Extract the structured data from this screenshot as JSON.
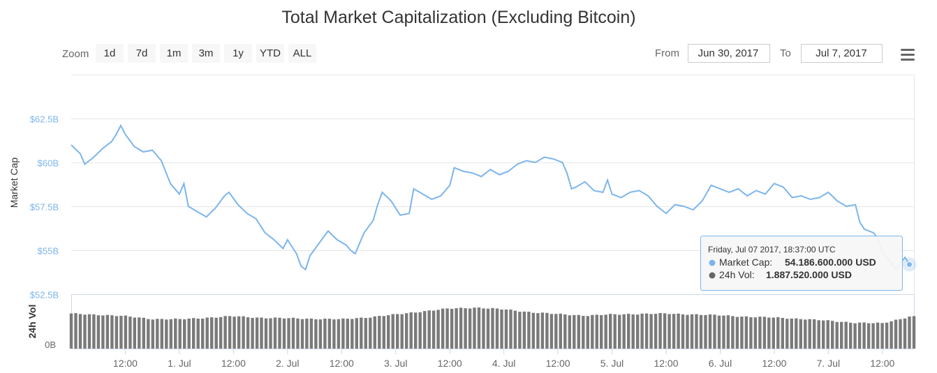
{
  "chart_data": {
    "type": "line",
    "title": "Total Market Capitalization (Excluding Bitcoin)",
    "controls": {
      "zoom_label": "Zoom",
      "zoom_buttons": [
        "1d",
        "7d",
        "1m",
        "3m",
        "1y",
        "YTD",
        "ALL"
      ],
      "from_label": "From",
      "from_value": "Jun 30, 2017",
      "to_label": "To",
      "to_value": "Jul 7, 2017",
      "menu_icon": "hamburger-icon"
    },
    "x_axis": {
      "type": "datetime",
      "range_hours": [
        0,
        187
      ],
      "tick_labels": [
        {
          "hour": 12,
          "label": "12:00"
        },
        {
          "hour": 24,
          "label": "1. Jul"
        },
        {
          "hour": 36,
          "label": "12:00"
        },
        {
          "hour": 48,
          "label": "2. Jul"
        },
        {
          "hour": 60,
          "label": "12:00"
        },
        {
          "hour": 72,
          "label": "3. Jul"
        },
        {
          "hour": 84,
          "label": "12:00"
        },
        {
          "hour": 96,
          "label": "4. Jul"
        },
        {
          "hour": 108,
          "label": "12:00"
        },
        {
          "hour": 120,
          "label": "5. Jul"
        },
        {
          "hour": 132,
          "label": "12:00"
        },
        {
          "hour": 144,
          "label": "6. Jul"
        },
        {
          "hour": 156,
          "label": "12:00"
        },
        {
          "hour": 168,
          "label": "7. Jul"
        },
        {
          "hour": 180,
          "label": "12:00"
        }
      ]
    },
    "y_axis_market_cap": {
      "label": "Market Cap",
      "range": [
        52.5,
        65
      ],
      "ticks": [
        {
          "value": 52.5,
          "label": "$52.5B"
        },
        {
          "value": 55,
          "label": "$55B"
        },
        {
          "value": 57.5,
          "label": "$57.5B"
        },
        {
          "value": 60,
          "label": "$60B"
        },
        {
          "value": 62.5,
          "label": "$62.5B"
        }
      ],
      "grid": true
    },
    "y_axis_volume": {
      "label": "24h Vol",
      "range": [
        0,
        3.2
      ],
      "ticks": [
        {
          "value": 0,
          "label": "0B"
        }
      ]
    },
    "series": [
      {
        "name": "Market Cap",
        "unit": "USD billions",
        "color": "#7cb5ec",
        "points": [
          {
            "hour": 0,
            "value": 61.0
          },
          {
            "hour": 2,
            "value": 60.5
          },
          {
            "hour": 3,
            "value": 59.9
          },
          {
            "hour": 5,
            "value": 60.3
          },
          {
            "hour": 7,
            "value": 60.8
          },
          {
            "hour": 9,
            "value": 61.2
          },
          {
            "hour": 10,
            "value": 61.6
          },
          {
            "hour": 11,
            "value": 62.1
          },
          {
            "hour": 12,
            "value": 61.6
          },
          {
            "hour": 14,
            "value": 60.9
          },
          {
            "hour": 16,
            "value": 60.6
          },
          {
            "hour": 18,
            "value": 60.7
          },
          {
            "hour": 20,
            "value": 60.1
          },
          {
            "hour": 22,
            "value": 58.8
          },
          {
            "hour": 24,
            "value": 58.2
          },
          {
            "hour": 25,
            "value": 58.8
          },
          {
            "hour": 26,
            "value": 57.5
          },
          {
            "hour": 28,
            "value": 57.2
          },
          {
            "hour": 30,
            "value": 56.9
          },
          {
            "hour": 32,
            "value": 57.4
          },
          {
            "hour": 34,
            "value": 58.1
          },
          {
            "hour": 35,
            "value": 58.3
          },
          {
            "hour": 37,
            "value": 57.6
          },
          {
            "hour": 39,
            "value": 57.1
          },
          {
            "hour": 41,
            "value": 56.8
          },
          {
            "hour": 43,
            "value": 56.0
          },
          {
            "hour": 45,
            "value": 55.6
          },
          {
            "hour": 47,
            "value": 55.1
          },
          {
            "hour": 48,
            "value": 55.6
          },
          {
            "hour": 49,
            "value": 55.2
          },
          {
            "hour": 50,
            "value": 54.8
          },
          {
            "hour": 51,
            "value": 54.1
          },
          {
            "hour": 52,
            "value": 53.9
          },
          {
            "hour": 53,
            "value": 54.7
          },
          {
            "hour": 55,
            "value": 55.4
          },
          {
            "hour": 57,
            "value": 56.1
          },
          {
            "hour": 59,
            "value": 55.6
          },
          {
            "hour": 61,
            "value": 55.3
          },
          {
            "hour": 62,
            "value": 55.0
          },
          {
            "hour": 63,
            "value": 54.8
          },
          {
            "hour": 65,
            "value": 56.0
          },
          {
            "hour": 67,
            "value": 56.7
          },
          {
            "hour": 68,
            "value": 57.6
          },
          {
            "hour": 69,
            "value": 58.3
          },
          {
            "hour": 71,
            "value": 57.8
          },
          {
            "hour": 73,
            "value": 57.0
          },
          {
            "hour": 75,
            "value": 57.1
          },
          {
            "hour": 76,
            "value": 58.5
          },
          {
            "hour": 78,
            "value": 58.2
          },
          {
            "hour": 80,
            "value": 57.9
          },
          {
            "hour": 82,
            "value": 58.1
          },
          {
            "hour": 84,
            "value": 58.7
          },
          {
            "hour": 85,
            "value": 59.7
          },
          {
            "hour": 87,
            "value": 59.5
          },
          {
            "hour": 89,
            "value": 59.4
          },
          {
            "hour": 91,
            "value": 59.2
          },
          {
            "hour": 93,
            "value": 59.6
          },
          {
            "hour": 95,
            "value": 59.3
          },
          {
            "hour": 97,
            "value": 59.5
          },
          {
            "hour": 99,
            "value": 59.9
          },
          {
            "hour": 101,
            "value": 60.1
          },
          {
            "hour": 103,
            "value": 60.0
          },
          {
            "hour": 105,
            "value": 60.3
          },
          {
            "hour": 107,
            "value": 60.2
          },
          {
            "hour": 109,
            "value": 60.0
          },
          {
            "hour": 110,
            "value": 59.4
          },
          {
            "hour": 111,
            "value": 58.5
          },
          {
            "hour": 112,
            "value": 58.6
          },
          {
            "hour": 114,
            "value": 58.9
          },
          {
            "hour": 116,
            "value": 58.4
          },
          {
            "hour": 118,
            "value": 58.3
          },
          {
            "hour": 119,
            "value": 59.0
          },
          {
            "hour": 120,
            "value": 58.2
          },
          {
            "hour": 122,
            "value": 58.0
          },
          {
            "hour": 124,
            "value": 58.3
          },
          {
            "hour": 126,
            "value": 58.4
          },
          {
            "hour": 128,
            "value": 58.1
          },
          {
            "hour": 130,
            "value": 57.5
          },
          {
            "hour": 132,
            "value": 57.1
          },
          {
            "hour": 134,
            "value": 57.6
          },
          {
            "hour": 136,
            "value": 57.5
          },
          {
            "hour": 138,
            "value": 57.3
          },
          {
            "hour": 140,
            "value": 57.8
          },
          {
            "hour": 142,
            "value": 58.7
          },
          {
            "hour": 144,
            "value": 58.5
          },
          {
            "hour": 146,
            "value": 58.3
          },
          {
            "hour": 148,
            "value": 58.5
          },
          {
            "hour": 150,
            "value": 58.1
          },
          {
            "hour": 152,
            "value": 58.4
          },
          {
            "hour": 154,
            "value": 58.2
          },
          {
            "hour": 156,
            "value": 58.8
          },
          {
            "hour": 158,
            "value": 58.6
          },
          {
            "hour": 160,
            "value": 58.0
          },
          {
            "hour": 162,
            "value": 58.1
          },
          {
            "hour": 164,
            "value": 57.9
          },
          {
            "hour": 166,
            "value": 58.0
          },
          {
            "hour": 168,
            "value": 58.3
          },
          {
            "hour": 170,
            "value": 57.8
          },
          {
            "hour": 172,
            "value": 57.5
          },
          {
            "hour": 174,
            "value": 57.6
          },
          {
            "hour": 175,
            "value": 56.6
          },
          {
            "hour": 176,
            "value": 56.2
          },
          {
            "hour": 178,
            "value": 56.0
          },
          {
            "hour": 179,
            "value": 55.7
          },
          {
            "hour": 180,
            "value": 54.9
          },
          {
            "hour": 182,
            "value": 54.3
          },
          {
            "hour": 183,
            "value": 53.9
          },
          {
            "hour": 185,
            "value": 54.6
          },
          {
            "hour": 186,
            "value": 54.19
          }
        ]
      },
      {
        "name": "24h Vol",
        "unit": "USD billions",
        "color": "#7a7a7a",
        "points": [
          {
            "hour": 0,
            "value": 2.05
          },
          {
            "hour": 6,
            "value": 2.0
          },
          {
            "hour": 12,
            "value": 1.9
          },
          {
            "hour": 18,
            "value": 1.75
          },
          {
            "hour": 24,
            "value": 1.72
          },
          {
            "hour": 30,
            "value": 1.82
          },
          {
            "hour": 36,
            "value": 1.9
          },
          {
            "hour": 42,
            "value": 1.82
          },
          {
            "hour": 48,
            "value": 1.78
          },
          {
            "hour": 54,
            "value": 1.76
          },
          {
            "hour": 60,
            "value": 1.72
          },
          {
            "hour": 66,
            "value": 1.85
          },
          {
            "hour": 72,
            "value": 2.0
          },
          {
            "hour": 78,
            "value": 2.2
          },
          {
            "hour": 84,
            "value": 2.35
          },
          {
            "hour": 90,
            "value": 2.42
          },
          {
            "hour": 96,
            "value": 2.3
          },
          {
            "hour": 102,
            "value": 2.15
          },
          {
            "hour": 108,
            "value": 2.02
          },
          {
            "hour": 114,
            "value": 1.95
          },
          {
            "hour": 120,
            "value": 2.0
          },
          {
            "hour": 126,
            "value": 2.05
          },
          {
            "hour": 132,
            "value": 2.05
          },
          {
            "hour": 138,
            "value": 2.02
          },
          {
            "hour": 144,
            "value": 1.95
          },
          {
            "hour": 150,
            "value": 1.88
          },
          {
            "hour": 156,
            "value": 1.82
          },
          {
            "hour": 162,
            "value": 1.76
          },
          {
            "hour": 168,
            "value": 1.63
          },
          {
            "hour": 174,
            "value": 1.53
          },
          {
            "hour": 180,
            "value": 1.48
          },
          {
            "hour": 186,
            "value": 1.89
          }
        ]
      }
    ],
    "tooltip": {
      "hour": 186,
      "header": "Friday, Jul 07 2017, 18:37:00 UTC",
      "rows": [
        {
          "label": "Market Cap:",
          "value": "54.186.600.000 USD",
          "color": "#7cb5ec"
        },
        {
          "label": "24h Vol:",
          "value": "1.887.520.000 USD",
          "color": "#666666"
        }
      ]
    }
  }
}
